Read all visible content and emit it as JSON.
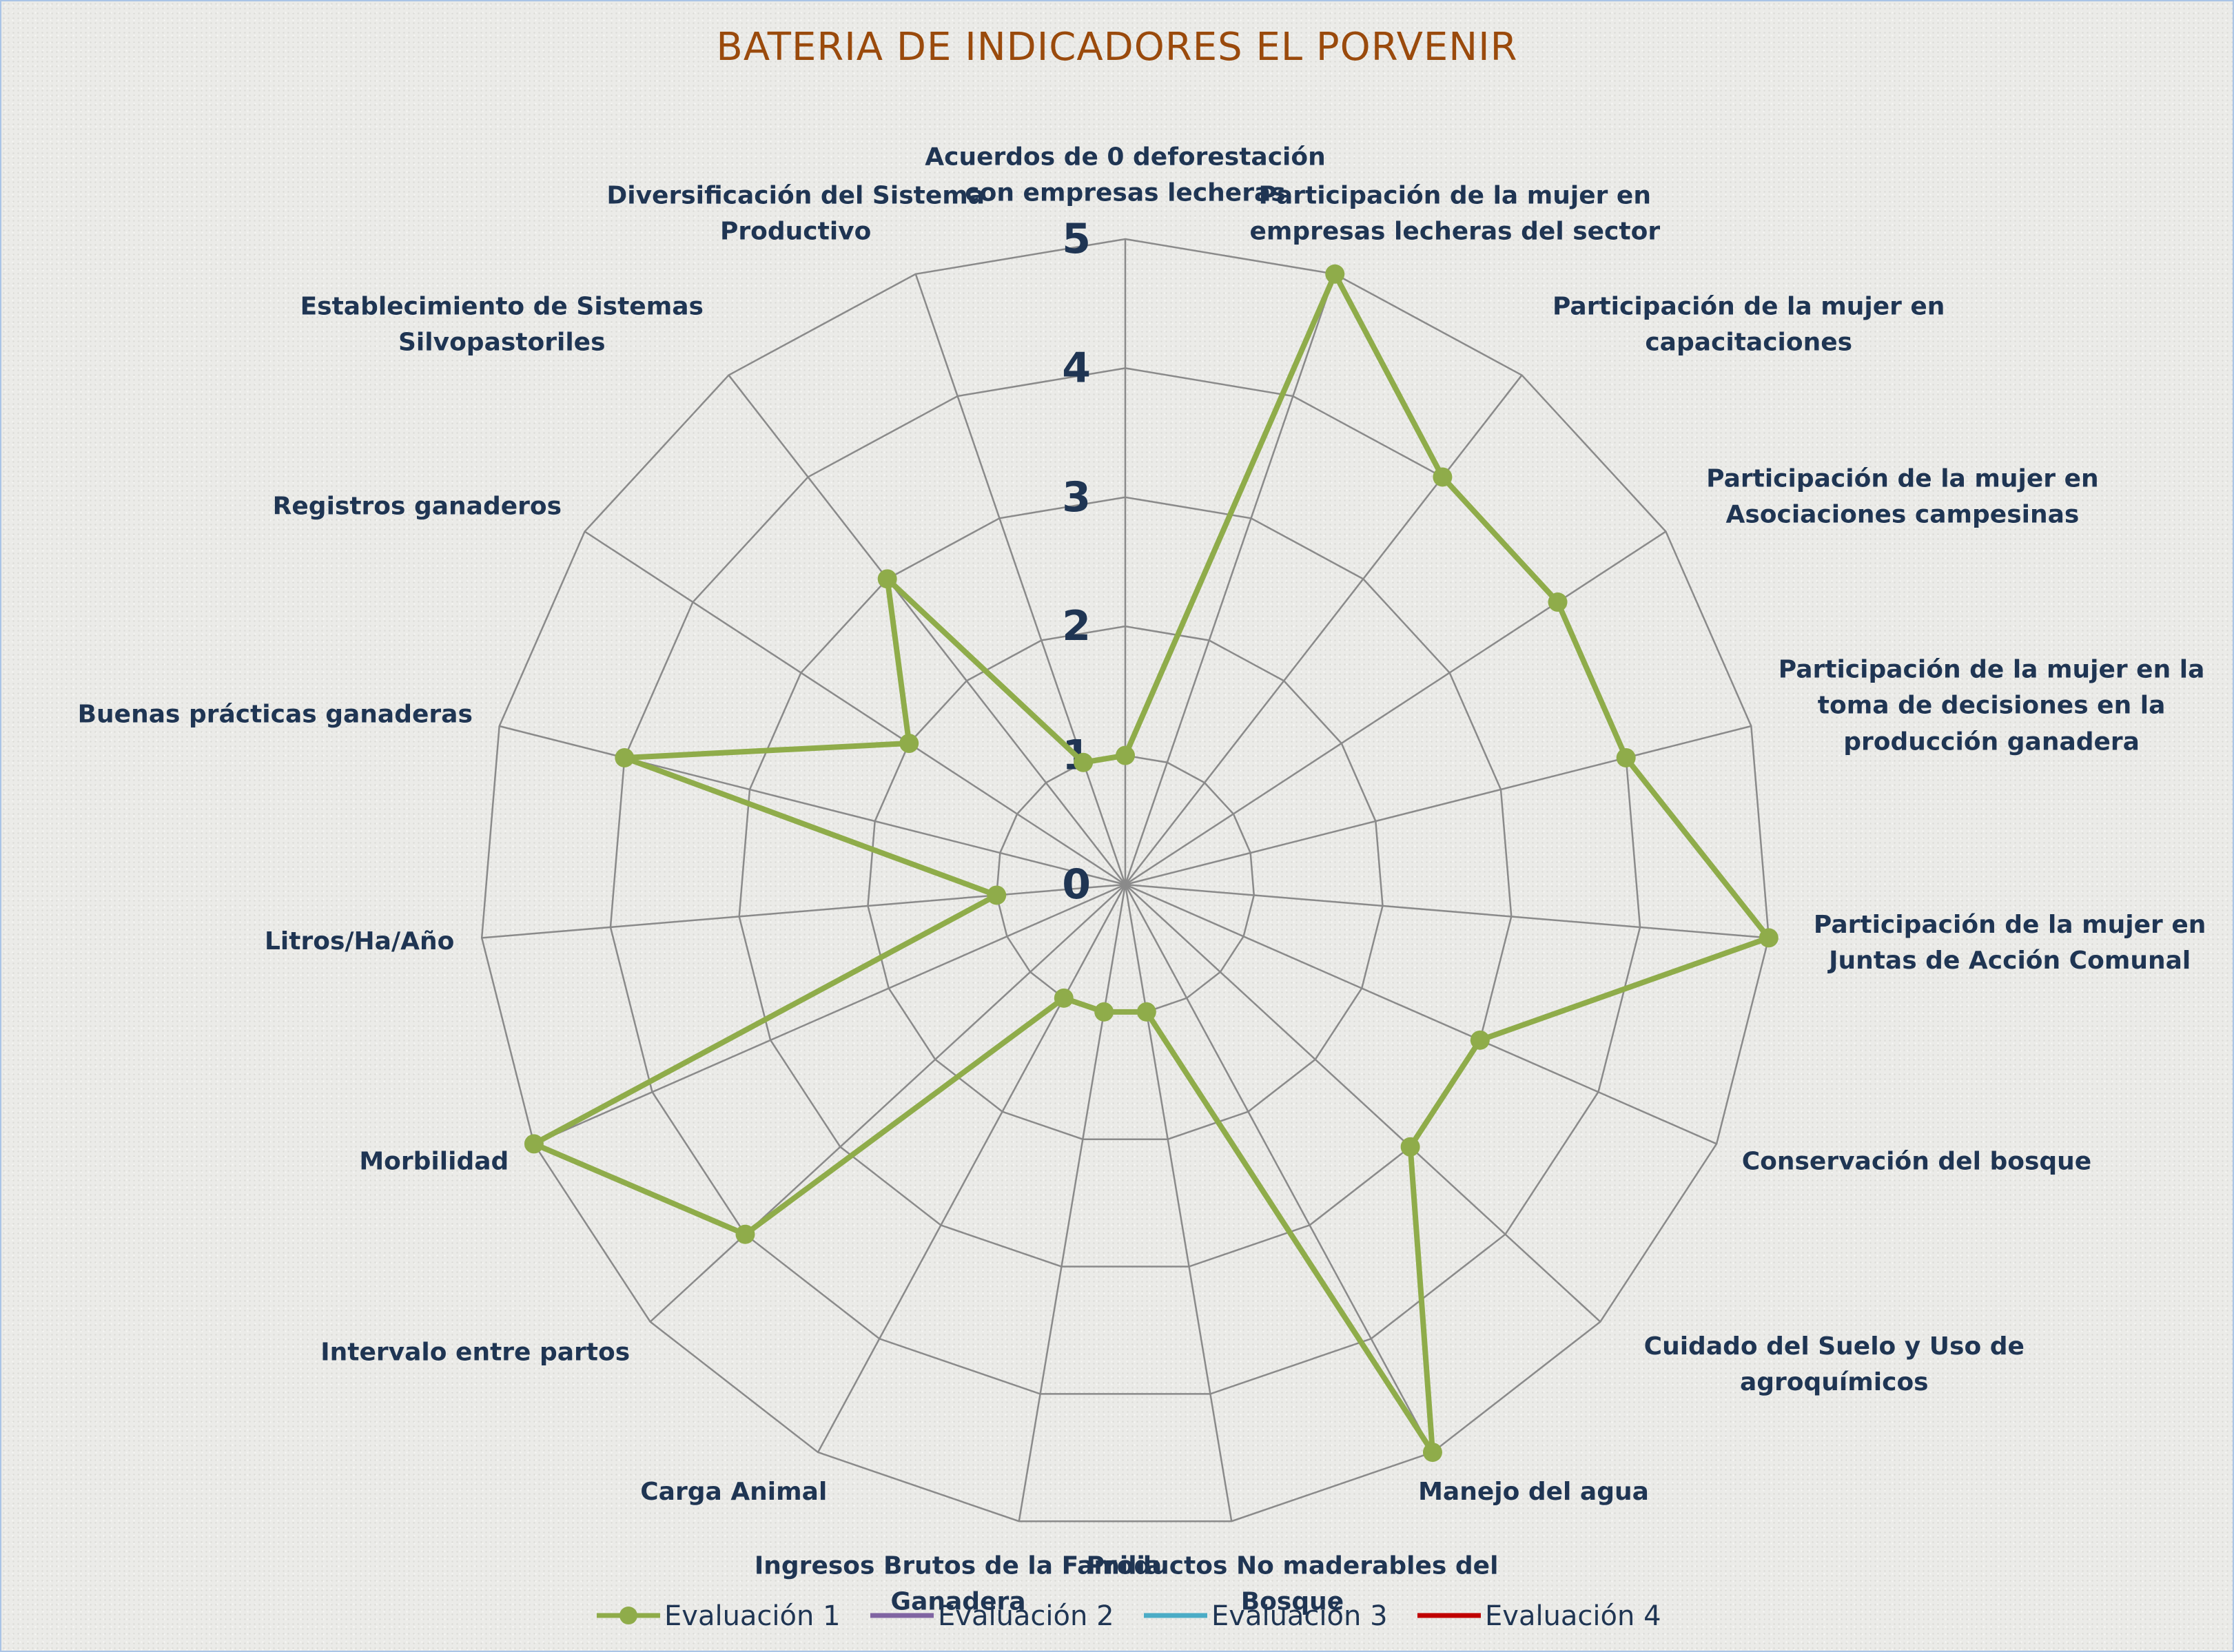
{
  "chart_data": {
    "type": "radar",
    "title": "BATERIA DE INDICADORES EL PORVENIR",
    "categories": [
      "Acuerdos de 0 deforestación con empresas lecheras",
      "Participación de la mujer en empresas lecheras del sector",
      "Participación de la mujer en capacitaciones",
      "Participación de la mujer en Asociaciones campesinas",
      "Participación de la mujer en la toma de decisiones en la producción ganadera",
      "Participación de la mujer en Juntas de Acción Comunal",
      "Conservación del bosque",
      "Cuidado del Suelo y Uso de agroquímicos",
      "Manejo del agua",
      "Productos No maderables del Bosque",
      "Ingresos Brutos de la Familia Ganadera",
      "Carga Animal",
      "Intervalo entre partos",
      "Morbilidad",
      "Litros/Ha/Año",
      "Buenas prácticas ganaderas",
      "Registros ganaderos",
      "Establecimiento de Sistemas Silvopastoriles",
      "Diversificación del Sistema Productivo"
    ],
    "series": [
      {
        "name": "Evaluación 1",
        "color": "#8fac4a",
        "markers": true,
        "values": [
          1,
          5,
          4,
          4,
          4,
          5,
          3,
          3,
          5,
          1,
          1,
          1,
          4,
          5,
          1,
          4,
          2,
          3,
          1
        ]
      },
      {
        "name": "Evaluación 2",
        "color": "#8064a2",
        "markers": false,
        "values": [
          null,
          null,
          null,
          null,
          null,
          null,
          null,
          null,
          null,
          null,
          null,
          null,
          null,
          null,
          null,
          null,
          null,
          null,
          null
        ]
      },
      {
        "name": "Evaluación 3",
        "color": "#4bacc6",
        "markers": false,
        "values": [
          null,
          null,
          null,
          null,
          null,
          null,
          null,
          null,
          null,
          null,
          null,
          null,
          null,
          null,
          null,
          null,
          null,
          null,
          null
        ]
      },
      {
        "name": "Evaluación 4",
        "color": "#c00000",
        "markers": false,
        "values": [
          null,
          null,
          null,
          null,
          null,
          null,
          null,
          null,
          null,
          null,
          null,
          null,
          null,
          null,
          null,
          null,
          null,
          null,
          null
        ]
      }
    ],
    "rlim": [
      0,
      5
    ],
    "rticks": [
      0,
      1,
      2,
      3,
      4,
      5
    ],
    "grid": true,
    "legend": "bottom"
  }
}
